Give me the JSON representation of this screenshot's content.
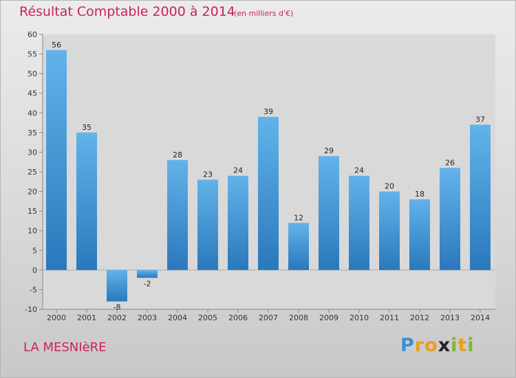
{
  "header": {
    "title": "Résultat Comptable 2000 à 2014",
    "subtitle": "(en milliers d'€)"
  },
  "commune": "LA MESNIèRE",
  "logo": {
    "text": "Proxiti",
    "letters": [
      {
        "ch": "P",
        "color": "#3a8fd6"
      },
      {
        "ch": "r",
        "color": "#e8a020"
      },
      {
        "ch": "o",
        "color": "#e8a020"
      },
      {
        "ch": "x",
        "color": "#222222"
      },
      {
        "ch": "i",
        "color": "#7ab832"
      },
      {
        "ch": "t",
        "color": "#e8a020"
      },
      {
        "ch": "i",
        "color": "#7ab832"
      }
    ]
  },
  "colors": {
    "accent": "#cc2255",
    "bar_top": "#62b3ea",
    "bar_bottom": "#2a78bc"
  },
  "chart_data": {
    "type": "bar",
    "title": "Résultat Comptable 2000 à 2014",
    "xlabel": "",
    "ylabel": "",
    "categories": [
      "2000",
      "2001",
      "2002",
      "2003",
      "2004",
      "2005",
      "2006",
      "2007",
      "2008",
      "2009",
      "2010",
      "2011",
      "2012",
      "2013",
      "2014"
    ],
    "values": [
      56,
      35,
      -8,
      -2,
      28,
      23,
      24,
      39,
      12,
      29,
      24,
      20,
      18,
      26,
      37
    ],
    "ylim": [
      -10,
      60
    ],
    "yticks": [
      -10,
      -5,
      0,
      5,
      10,
      15,
      20,
      25,
      30,
      35,
      40,
      45,
      50,
      55,
      60
    ],
    "grid": false
  }
}
